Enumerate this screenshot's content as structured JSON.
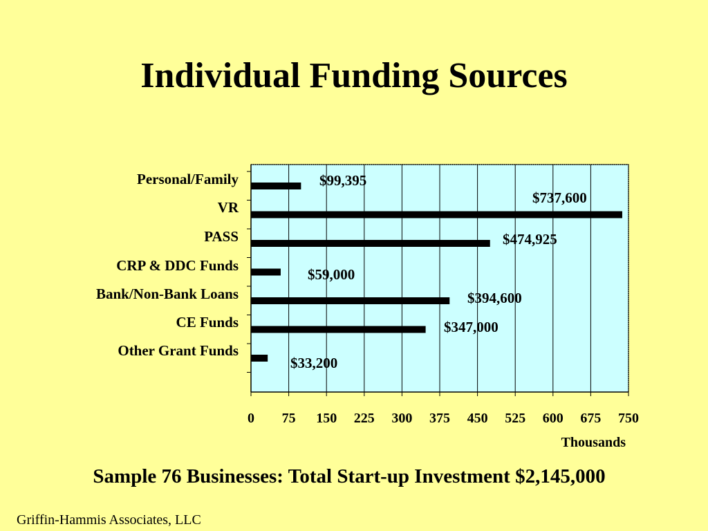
{
  "slide": {
    "title": "Individual Funding Sources",
    "summary": "Sample 76 Businesses: Total Start-up Investment $2,145,000",
    "credit": "Griffin-Hammis Associates, LLC"
  },
  "chart_data": {
    "type": "bar",
    "orientation": "horizontal",
    "categories": [
      "Personal/Family",
      "VR",
      "PASS",
      "CRP & DDC Funds",
      "Bank/Non-Bank Loans",
      "CE Funds",
      "Other Grant Funds"
    ],
    "values": [
      99.395,
      737.6,
      474.925,
      59.0,
      394.6,
      347.0,
      33.2
    ],
    "data_labels": [
      "$99,395",
      "$737,600",
      "$474,925",
      "$59,000",
      "$394,600",
      "$347,000",
      "$33,200"
    ],
    "xticks": [
      "0",
      "75",
      "150",
      "225",
      "300",
      "375",
      "450",
      "525",
      "600",
      "675",
      "750"
    ],
    "xlabel": "Thousands",
    "xlim": [
      0,
      750
    ],
    "grid": true,
    "colors": {
      "background": "#ffff99",
      "plot_area": "#ccffff",
      "bar": "#000000",
      "grid": "#000000"
    }
  }
}
